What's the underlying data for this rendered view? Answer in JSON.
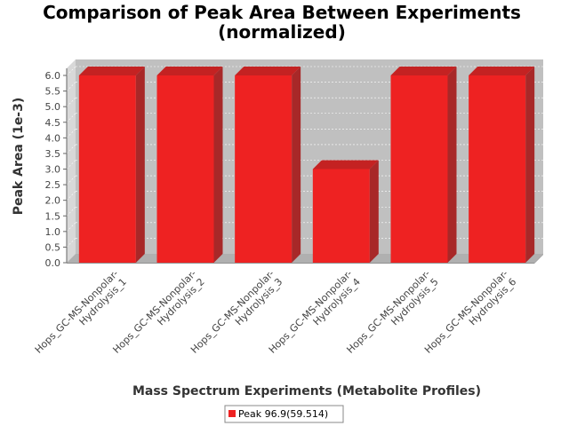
{
  "chart_data": {
    "type": "bar",
    "title_lines": [
      "Comparison of Peak Area Between Experiments",
      "(normalized)"
    ],
    "xlabel": "Mass Spectrum Experiments (Metabolite Profiles)",
    "ylabel": "Peak Area (1e-3)",
    "categories": [
      [
        "Hops_GC-MS-Nonpolar-",
        "Hydrolysis_1"
      ],
      [
        "Hops_GC-MS-Nonpolar-",
        "Hydrolysis_2"
      ],
      [
        "Hops_GC-MS-Nonpolar-",
        "Hydrolysis_3"
      ],
      [
        "Hops_GC-MS-Nonpolar-",
        "Hydrolysis_4"
      ],
      [
        "Hops_GC-MS-Nonpolar-",
        "Hydrolysis_5"
      ],
      [
        "Hops_GC-MS-Nonpolar-",
        "Hydrolysis_6"
      ]
    ],
    "series": [
      {
        "name": "Peak 96.9(59.514)",
        "values": [
          6.0,
          6.0,
          6.0,
          3.0,
          6.0,
          6.0
        ],
        "color": "#ee2222"
      }
    ],
    "yticks": [
      "0.0",
      "0.5",
      "1.0",
      "1.5",
      "2.0",
      "2.5",
      "3.0",
      "3.5",
      "4.0",
      "4.5",
      "5.0",
      "5.5",
      "6.0"
    ],
    "ylim": [
      0,
      6.0
    ],
    "grid": true,
    "legend_position": "bottom",
    "plot_background": "#c0c0c0"
  }
}
